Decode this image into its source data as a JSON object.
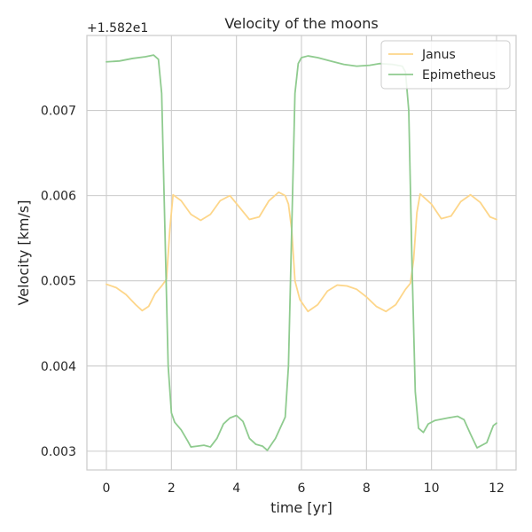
{
  "chart_data": {
    "type": "line",
    "title": "Velocity of the moons",
    "xlabel": "time [yr]",
    "ylabel": "Velocity [km/s]",
    "offset_label": "+1.582e1",
    "xlim": [
      -0.6,
      12.6
    ],
    "ylim": [
      0.00278,
      0.00788
    ],
    "xticks": [
      0,
      2,
      4,
      6,
      8,
      10,
      12
    ],
    "xtick_labels": [
      "0",
      "2",
      "4",
      "6",
      "8",
      "10",
      "12"
    ],
    "yticks": [
      0.003,
      0.004,
      0.005,
      0.006,
      0.007
    ],
    "ytick_labels": [
      "0.003",
      "0.004",
      "0.005",
      "0.006",
      "0.007"
    ],
    "grid": true,
    "legend_position": "top-right",
    "series": [
      {
        "name": "Janus",
        "color": "#fdd68a",
        "x": [
          0.0,
          0.3,
          0.6,
          0.9,
          1.1,
          1.3,
          1.5,
          1.7,
          1.85,
          1.95,
          2.05,
          2.3,
          2.6,
          2.9,
          3.2,
          3.5,
          3.8,
          4.1,
          4.4,
          4.7,
          5.0,
          5.3,
          5.5,
          5.6,
          5.7,
          5.8,
          5.95,
          6.2,
          6.5,
          6.8,
          7.1,
          7.4,
          7.7,
          8.0,
          8.3,
          8.6,
          8.9,
          9.2,
          9.35,
          9.45,
          9.55,
          9.65,
          10.0,
          10.3,
          10.6,
          10.9,
          11.2,
          11.5,
          11.8,
          12.0
        ],
        "values": [
          0.00496,
          0.00492,
          0.00484,
          0.00472,
          0.00465,
          0.0047,
          0.00485,
          0.00494,
          0.00502,
          0.0056,
          0.00601,
          0.00594,
          0.00578,
          0.00571,
          0.00578,
          0.00594,
          0.006,
          0.00586,
          0.00572,
          0.00575,
          0.00594,
          0.00604,
          0.006,
          0.0059,
          0.0056,
          0.005,
          0.00478,
          0.00464,
          0.00472,
          0.00488,
          0.00495,
          0.00494,
          0.0049,
          0.00481,
          0.0047,
          0.00464,
          0.00472,
          0.0049,
          0.00497,
          0.00525,
          0.0058,
          0.00602,
          0.0059,
          0.00573,
          0.00576,
          0.00593,
          0.00601,
          0.00592,
          0.00575,
          0.00572
        ]
      },
      {
        "name": "Epimetheus",
        "color": "#8fcb8f",
        "x": [
          0.0,
          0.4,
          0.8,
          1.2,
          1.45,
          1.6,
          1.7,
          1.8,
          1.9,
          2.0,
          2.1,
          2.3,
          2.5,
          2.6,
          2.8,
          3.0,
          3.2,
          3.4,
          3.6,
          3.8,
          4.0,
          4.2,
          4.4,
          4.6,
          4.8,
          4.95,
          5.2,
          5.5,
          5.6,
          5.7,
          5.8,
          5.9,
          6.0,
          6.2,
          6.5,
          6.9,
          7.3,
          7.7,
          8.1,
          8.4,
          8.8,
          9.1,
          9.2,
          9.3,
          9.4,
          9.5,
          9.6,
          9.75,
          9.9,
          10.1,
          10.5,
          10.8,
          11.0,
          11.2,
          11.4,
          11.7,
          11.9,
          12.0
        ],
        "values": [
          0.00757,
          0.00758,
          0.00761,
          0.00763,
          0.00765,
          0.0076,
          0.0072,
          0.0056,
          0.004,
          0.00345,
          0.00334,
          0.00325,
          0.00312,
          0.00305,
          0.00306,
          0.00307,
          0.00305,
          0.00315,
          0.00332,
          0.00339,
          0.00342,
          0.00335,
          0.00315,
          0.00308,
          0.00306,
          0.00301,
          0.00315,
          0.0034,
          0.004,
          0.0056,
          0.0072,
          0.00755,
          0.00762,
          0.00764,
          0.00762,
          0.00758,
          0.00754,
          0.00752,
          0.00753,
          0.00755,
          0.00754,
          0.00752,
          0.00745,
          0.007,
          0.0052,
          0.0037,
          0.00327,
          0.00322,
          0.00332,
          0.00336,
          0.00339,
          0.00341,
          0.00337,
          0.0032,
          0.00304,
          0.0031,
          0.0033,
          0.00333
        ]
      }
    ]
  }
}
